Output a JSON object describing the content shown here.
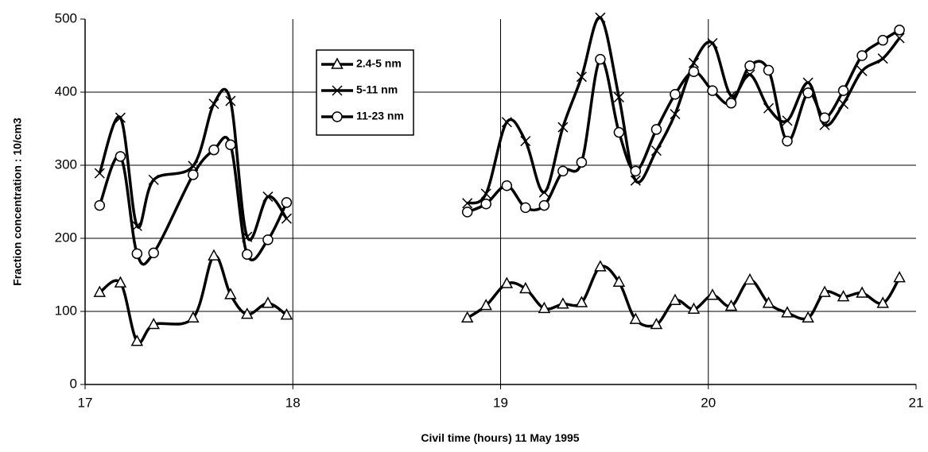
{
  "chart_data": {
    "type": "line",
    "xlabel": "Civil time (hours) 11 May 1995",
    "ylabel": "Fraction concentration : 10/cm3",
    "x": [
      17.07,
      17.17,
      17.25,
      17.33,
      17.52,
      17.62,
      17.7,
      17.78,
      17.88,
      17.97,
      null,
      18.84,
      18.93,
      19.03,
      19.12,
      19.21,
      19.3,
      19.39,
      19.48,
      19.57,
      19.65,
      19.75,
      19.84,
      19.93,
      20.02,
      20.11,
      20.2,
      20.29,
      20.38,
      20.48,
      20.56,
      20.65,
      20.74,
      20.84,
      20.92
    ],
    "series": [
      {
        "name": "2.4-5 nm",
        "color": "#000000",
        "marker": "triangle",
        "values": [
          126,
          139,
          59,
          82,
          91,
          176,
          123,
          96,
          111,
          95,
          null,
          91,
          108,
          138,
          131,
          104,
          110,
          112,
          161,
          140,
          89,
          82,
          115,
          103,
          122,
          107,
          143,
          111,
          98,
          91,
          126,
          120,
          125,
          111,
          146
        ]
      },
      {
        "name": "5-11 nm",
        "color": "#000000",
        "marker": "x",
        "values": [
          289,
          365,
          217,
          280,
          299,
          384,
          388,
          202,
          257,
          227,
          null,
          248,
          261,
          359,
          333,
          263,
          352,
          421,
          502,
          393,
          279,
          320,
          370,
          440,
          467,
          395,
          424,
          378,
          361,
          413,
          355,
          384,
          429,
          446,
          474
        ]
      },
      {
        "name": "11-23 nm",
        "color": "#000000",
        "marker": "circle",
        "values": [
          245,
          312,
          179,
          180,
          287,
          321,
          328,
          178,
          198,
          249,
          null,
          236,
          247,
          272,
          242,
          245,
          292,
          304,
          445,
          345,
          292,
          349,
          397,
          428,
          402,
          385,
          436,
          430,
          333,
          399,
          365,
          402,
          450,
          471,
          485
        ]
      }
    ],
    "xlim": [
      17,
      21
    ],
    "xticks": [
      17,
      18,
      19,
      20,
      21
    ],
    "ylim": [
      0,
      500
    ],
    "yticks": [
      0,
      100,
      200,
      300,
      400,
      500
    ],
    "grid": true,
    "legend": "top-center"
  }
}
